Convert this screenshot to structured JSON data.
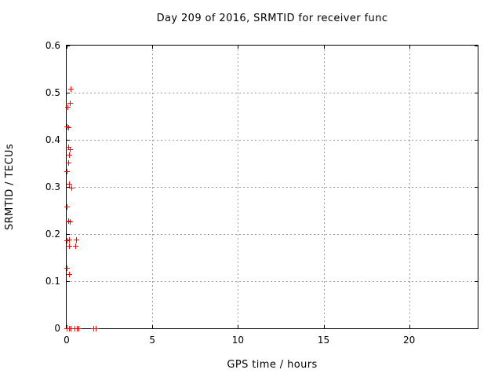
{
  "chart_data": {
    "type": "scatter",
    "title": "Day 209 of 2016, SRMTID for receiver func",
    "xlabel": "GPS time / hours",
    "ylabel": "SRMTID / TECUs",
    "xlim": [
      0,
      24
    ],
    "ylim": [
      0,
      0.6
    ],
    "xticks": [
      0,
      5,
      10,
      15,
      20
    ],
    "xtick_labels": [
      "0",
      "5",
      "10",
      "15",
      "20"
    ],
    "yticks": [
      0,
      0.1,
      0.2,
      0.3,
      0.4,
      0.5,
      0.6
    ],
    "ytick_labels": [
      "0",
      "0.1",
      "0.2",
      "0.3",
      "0.4",
      "0.5",
      "0.6"
    ],
    "grid": "dotted",
    "legend": "none",
    "marker": "plus",
    "colors": {
      "marker": "#ff0000",
      "grid": "#9c9c9c",
      "axis": "#000000",
      "text": "#000000",
      "background": "#ffffff"
    },
    "points": [
      [
        0.25,
        0.507
      ],
      [
        0.2,
        0.477
      ],
      [
        0.05,
        0.469
      ],
      [
        0.04,
        0.428
      ],
      [
        0.12,
        0.426
      ],
      [
        0.11,
        0.384
      ],
      [
        0.21,
        0.379
      ],
      [
        0.18,
        0.368
      ],
      [
        0.11,
        0.351
      ],
      [
        0.0,
        0.333
      ],
      [
        0.17,
        0.306
      ],
      [
        0.29,
        0.297
      ],
      [
        0.0,
        0.257
      ],
      [
        0.13,
        0.228
      ],
      [
        0.19,
        0.226
      ],
      [
        0.15,
        0.188
      ],
      [
        0.56,
        0.188
      ],
      [
        0.0,
        0.186
      ],
      [
        0.18,
        0.175
      ],
      [
        0.52,
        0.174
      ],
      [
        0.0,
        0.127
      ],
      [
        0.18,
        0.114
      ],
      [
        0.0,
        0.0
      ],
      [
        0.14,
        0.0
      ],
      [
        0.27,
        0.0
      ],
      [
        0.46,
        0.0
      ],
      [
        0.6,
        0.0
      ],
      [
        0.73,
        0.0
      ],
      [
        1.58,
        0.0
      ],
      [
        1.74,
        0.0
      ]
    ]
  }
}
